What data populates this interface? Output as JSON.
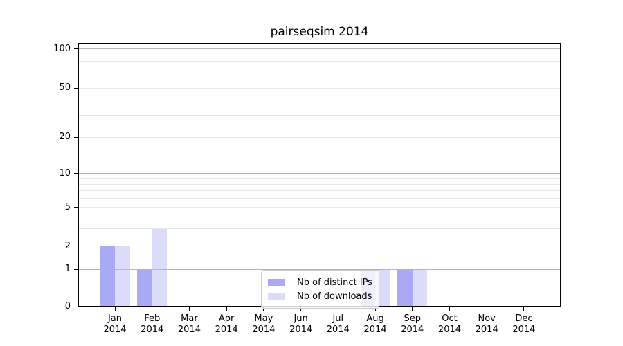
{
  "title": "pairseqsim 2014",
  "colors": {
    "bar_distinct_ips": "#a9a9f4",
    "bar_downloads": "#dbdcfa",
    "grid_decade_line": "#b4b4b4",
    "grid_minor_line": "#e8e8e8",
    "axis_line": "#000000",
    "legend_border": "#cccccc"
  },
  "legend": {
    "items": [
      {
        "label": "Nb of distinct IPs"
      },
      {
        "label": "Nb of downloads"
      }
    ]
  },
  "chart_data": {
    "type": "bar",
    "title": "pairseqsim 2014",
    "categories": [
      "Jan",
      "Feb",
      "Mar",
      "Apr",
      "May",
      "Jun",
      "Jul",
      "Aug",
      "Sep",
      "Oct",
      "Nov",
      "Dec"
    ],
    "category_year": "2014",
    "series": [
      {
        "name": "Nb of distinct IPs",
        "color": "#a9a9f4",
        "values": [
          2,
          1,
          0,
          0,
          0,
          0,
          0,
          1,
          1,
          0,
          0,
          0
        ]
      },
      {
        "name": "Nb of downloads",
        "color": "#dbdcfa",
        "values": [
          2,
          3,
          0,
          0,
          0,
          0,
          0,
          1,
          1,
          0,
          0,
          0
        ]
      }
    ],
    "xlabel": "",
    "ylabel": "",
    "yscale": "symlog",
    "y_major_ticks": [
      0,
      1,
      2,
      5,
      10,
      20,
      50,
      100
    ],
    "y_minor_gridlines": [
      3,
      4,
      6,
      7,
      8,
      9,
      30,
      40,
      60,
      70,
      80,
      90
    ],
    "ylim": [
      0,
      115
    ],
    "grid": true,
    "legend_position": "lower center"
  }
}
